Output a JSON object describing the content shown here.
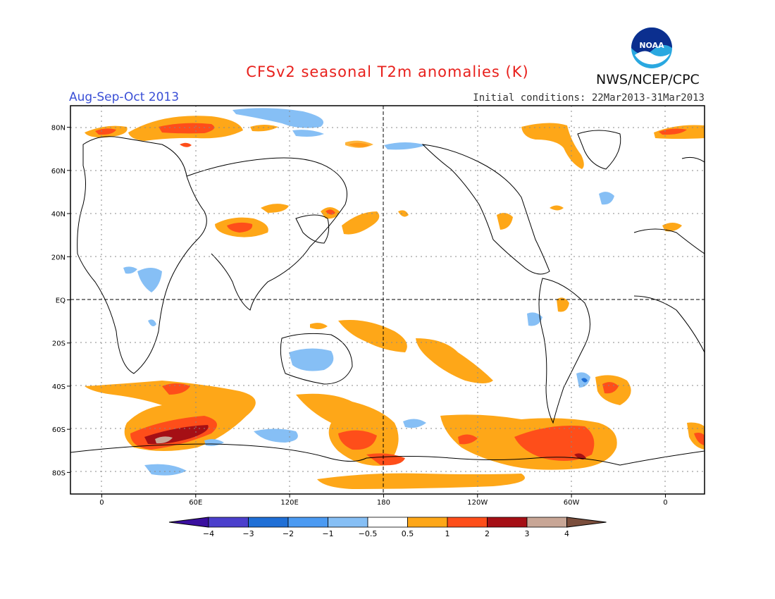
{
  "title": "CFSv2 seasonal T2m anomalies (K)",
  "season": "Aug-Sep-Oct 2013",
  "initial_conditions": "Initial conditions: 22Mar2013-31Mar2013",
  "agency": "NWS/NCEP/CPC",
  "logo_text": "NOAA",
  "map": {
    "lat_labels": [
      {
        "lat": 80,
        "label": "80N"
      },
      {
        "lat": 60,
        "label": "60N"
      },
      {
        "lat": 40,
        "label": "40N"
      },
      {
        "lat": 20,
        "label": "20N"
      },
      {
        "lat": 0,
        "label": "EQ"
      },
      {
        "lat": -20,
        "label": "20S"
      },
      {
        "lat": -40,
        "label": "40S"
      },
      {
        "lat": -60,
        "label": "60S"
      },
      {
        "lat": -80,
        "label": "80S"
      }
    ],
    "lon_labels": [
      {
        "lon": 0,
        "label": "0"
      },
      {
        "lon": 60,
        "label": "60E"
      },
      {
        "lon": 120,
        "label": "120E"
      },
      {
        "lon": 180,
        "label": "180"
      },
      {
        "lon": 240,
        "label": "120W"
      },
      {
        "lon": 300,
        "label": "60W"
      },
      {
        "lon": 360,
        "label": "0"
      }
    ],
    "lon_range": [
      -20,
      385
    ],
    "lat_range": [
      -90,
      90
    ]
  },
  "colors": {
    "c_m4": "#3a0f9f",
    "c_m3": "#4b3fcc",
    "c_m2": "#1f6fd6",
    "c_m1": "#4b9af2",
    "c_m05": "#86bff5",
    "c_0": "#ffffff",
    "c_05": "#fea718",
    "c_1": "#fe4e1a",
    "c_2": "#a50f15",
    "c_3": "#c8a696",
    "c_4": "#7b4e3c"
  },
  "colorbar": {
    "labels": [
      "−4",
      "−3",
      "−2",
      "−1",
      "−0.5",
      "0.5",
      "1",
      "2",
      "3",
      "4"
    ]
  }
}
